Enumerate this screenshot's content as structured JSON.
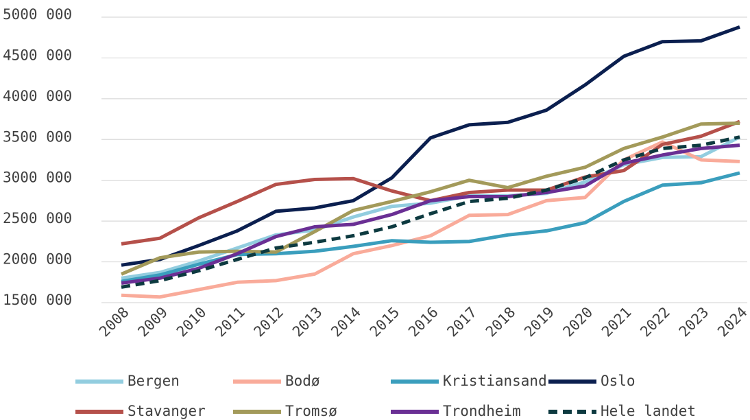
{
  "chart_data": {
    "type": "line",
    "categories": [
      "2008",
      "2009",
      "2010",
      "2011",
      "2012",
      "2013",
      "2014",
      "2015",
      "2016",
      "2017",
      "2018",
      "2019",
      "2020",
      "2021",
      "2022",
      "2023",
      "2024"
    ],
    "ylim": [
      1500000,
      5000000
    ],
    "yticks": [
      {
        "value": 1500000,
        "label": "1500 000"
      },
      {
        "value": 2000000,
        "label": "2000 000"
      },
      {
        "value": 2500000,
        "label": "2500 000"
      },
      {
        "value": 3000000,
        "label": "3000 000"
      },
      {
        "value": 3500000,
        "label": "3500 000"
      },
      {
        "value": 4000000,
        "label": "4000 000"
      },
      {
        "value": 4500000,
        "label": "4500 000"
      },
      {
        "value": 5000000,
        "label": "5000 000"
      }
    ],
    "grid": true,
    "legend": "bottom",
    "series": [
      {
        "name": "Bergen",
        "color": "#92cddf",
        "values": [
          1800000,
          1870000,
          2010000,
          2170000,
          2330000,
          2390000,
          2550000,
          2680000,
          2720000,
          2810000,
          2810000,
          2840000,
          2980000,
          3190000,
          3280000,
          3290000,
          3530000
        ]
      },
      {
        "name": "Bodø",
        "color": "#f9ab9a",
        "values": [
          1590000,
          1570000,
          1660000,
          1750000,
          1770000,
          1850000,
          2100000,
          2200000,
          2320000,
          2570000,
          2580000,
          2750000,
          2790000,
          3250000,
          3470000,
          3250000,
          3230000
        ]
      },
      {
        "name": "Kristiansand",
        "color": "#3a9ebd",
        "values": [
          1760000,
          1840000,
          1970000,
          2090000,
          2100000,
          2130000,
          2190000,
          2260000,
          2240000,
          2250000,
          2330000,
          2380000,
          2480000,
          2740000,
          2940000,
          2970000,
          3090000
        ]
      },
      {
        "name": "Oslo",
        "color": "#0b1f4f",
        "values": [
          1960000,
          2030000,
          2200000,
          2380000,
          2620000,
          2660000,
          2750000,
          3030000,
          3520000,
          3680000,
          3710000,
          3860000,
          4170000,
          4520000,
          4700000,
          4710000,
          4880000
        ]
      },
      {
        "name": "Stavanger",
        "color": "#b5504a",
        "values": [
          2220000,
          2290000,
          2540000,
          2740000,
          2950000,
          3010000,
          3020000,
          2870000,
          2750000,
          2850000,
          2880000,
          2880000,
          3040000,
          3120000,
          3440000,
          3540000,
          3720000
        ]
      },
      {
        "name": "Tromsø",
        "color": "#a39a5a",
        "values": [
          1850000,
          2050000,
          2120000,
          2130000,
          2120000,
          2370000,
          2630000,
          2740000,
          2860000,
          3000000,
          2910000,
          3050000,
          3160000,
          3390000,
          3530000,
          3690000,
          3700000
        ]
      },
      {
        "name": "Trondheim",
        "color": "#6a2f94",
        "values": [
          1740000,
          1800000,
          1920000,
          2100000,
          2310000,
          2430000,
          2460000,
          2580000,
          2750000,
          2800000,
          2800000,
          2850000,
          2930000,
          3210000,
          3310000,
          3390000,
          3430000
        ]
      },
      {
        "name": "Hele landet",
        "color": "#0d3a40",
        "dashed": true,
        "values": [
          1690000,
          1770000,
          1890000,
          2030000,
          2170000,
          2240000,
          2320000,
          2430000,
          2590000,
          2740000,
          2780000,
          2880000,
          3030000,
          3250000,
          3390000,
          3430000,
          3530000
        ]
      }
    ]
  }
}
